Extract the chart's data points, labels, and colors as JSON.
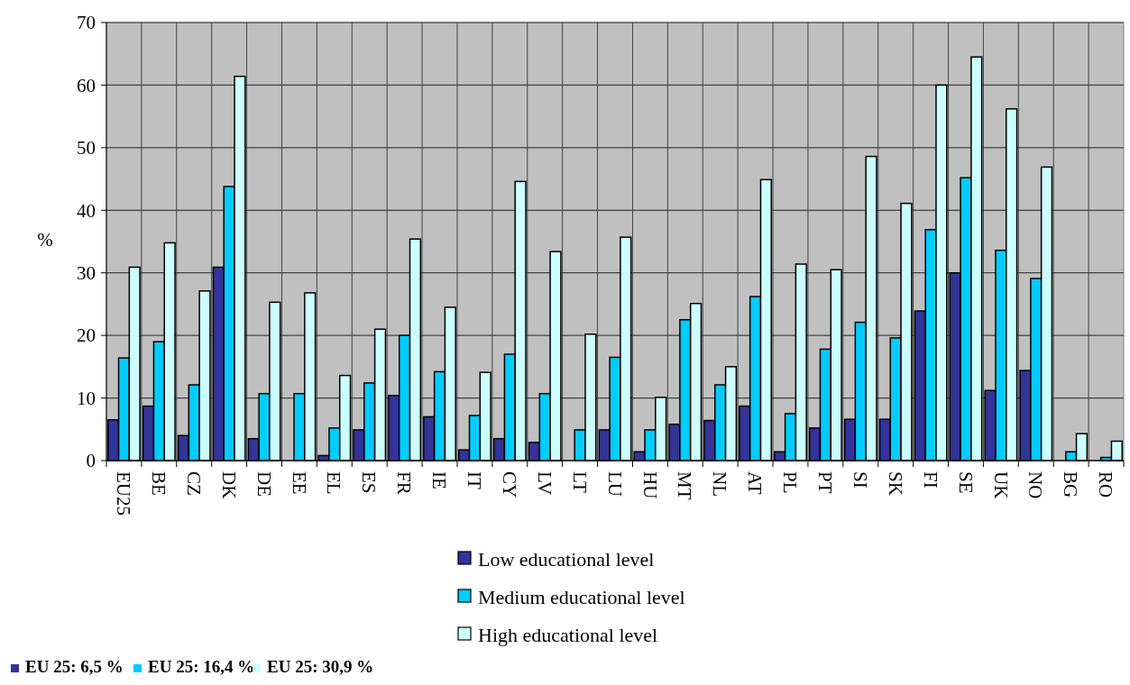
{
  "chart_data": {
    "type": "bar",
    "ylabel": "%",
    "categories": [
      "EU25",
      "BE",
      "CZ",
      "DK",
      "DE",
      "EE",
      "EL",
      "ES",
      "FR",
      "IE",
      "IT",
      "CY",
      "LV",
      "LT",
      "LU",
      "HU",
      "MT",
      "NL",
      "AT",
      "PL",
      "PT",
      "SI",
      "SK",
      "FI",
      "SE",
      "UK",
      "NO",
      "BG",
      "RO"
    ],
    "series": [
      {
        "name": "Low educational level",
        "color": "#333399",
        "values": [
          6.5,
          8.7,
          4.0,
          30.9,
          3.5,
          null,
          0.8,
          4.9,
          10.4,
          7.0,
          1.7,
          3.5,
          2.9,
          null,
          4.9,
          1.4,
          5.8,
          6.4,
          8.7,
          1.4,
          5.2,
          6.6,
          6.6,
          23.9,
          30.0,
          11.2,
          14.4,
          null,
          null
        ]
      },
      {
        "name": "Medium educational level",
        "color": "#00ccff",
        "values": [
          16.4,
          19.0,
          12.1,
          43.8,
          10.7,
          10.7,
          5.2,
          12.4,
          20.0,
          14.2,
          7.2,
          17.0,
          10.7,
          4.9,
          16.5,
          4.9,
          22.5,
          12.1,
          26.2,
          7.5,
          17.8,
          22.1,
          19.6,
          36.9,
          45.2,
          33.6,
          29.1,
          1.4,
          0.5
        ]
      },
      {
        "name": "High educational level",
        "color": "#ccffff",
        "values": [
          30.9,
          34.8,
          27.1,
          61.4,
          25.3,
          26.8,
          13.6,
          21.0,
          35.4,
          24.5,
          14.1,
          44.6,
          33.4,
          20.2,
          35.7,
          10.1,
          25.1,
          15.0,
          44.9,
          31.4,
          30.5,
          48.6,
          41.1,
          60.0,
          64.5,
          56.2,
          46.9,
          4.3,
          3.1
        ]
      }
    ],
    "ylim": [
      0,
      70
    ],
    "yticks": [
      0,
      10,
      20,
      30,
      40,
      50,
      60,
      70
    ],
    "grid": true,
    "legend": "bottom",
    "annotations": [
      "EU 25: 6,5 %",
      "EU 25: 16,4 %",
      "EU 25: 30,9 %"
    ]
  }
}
